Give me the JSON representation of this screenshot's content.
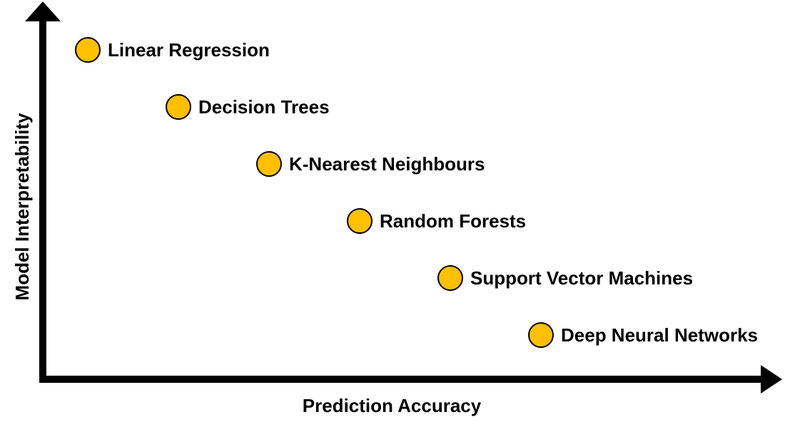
{
  "chart_data": {
    "type": "scatter",
    "xlabel": "Prediction Accuracy",
    "ylabel": "Model Interpretability",
    "grid": false,
    "legend": "none",
    "marker_color": "#FFC000",
    "marker_stroke": "#000000",
    "axis_color": "#000000",
    "points": [
      {
        "label": "Linear Regression",
        "x": 1,
        "y": 6
      },
      {
        "label": "Decision Trees",
        "x": 2,
        "y": 5
      },
      {
        "label": "K-Nearest Neighbours",
        "x": 3,
        "y": 4
      },
      {
        "label": "Random Forests",
        "x": 4,
        "y": 3
      },
      {
        "label": "Support Vector Machines",
        "x": 5,
        "y": 2
      },
      {
        "label": "Deep Neural Networks",
        "x": 6,
        "y": 1
      }
    ]
  }
}
